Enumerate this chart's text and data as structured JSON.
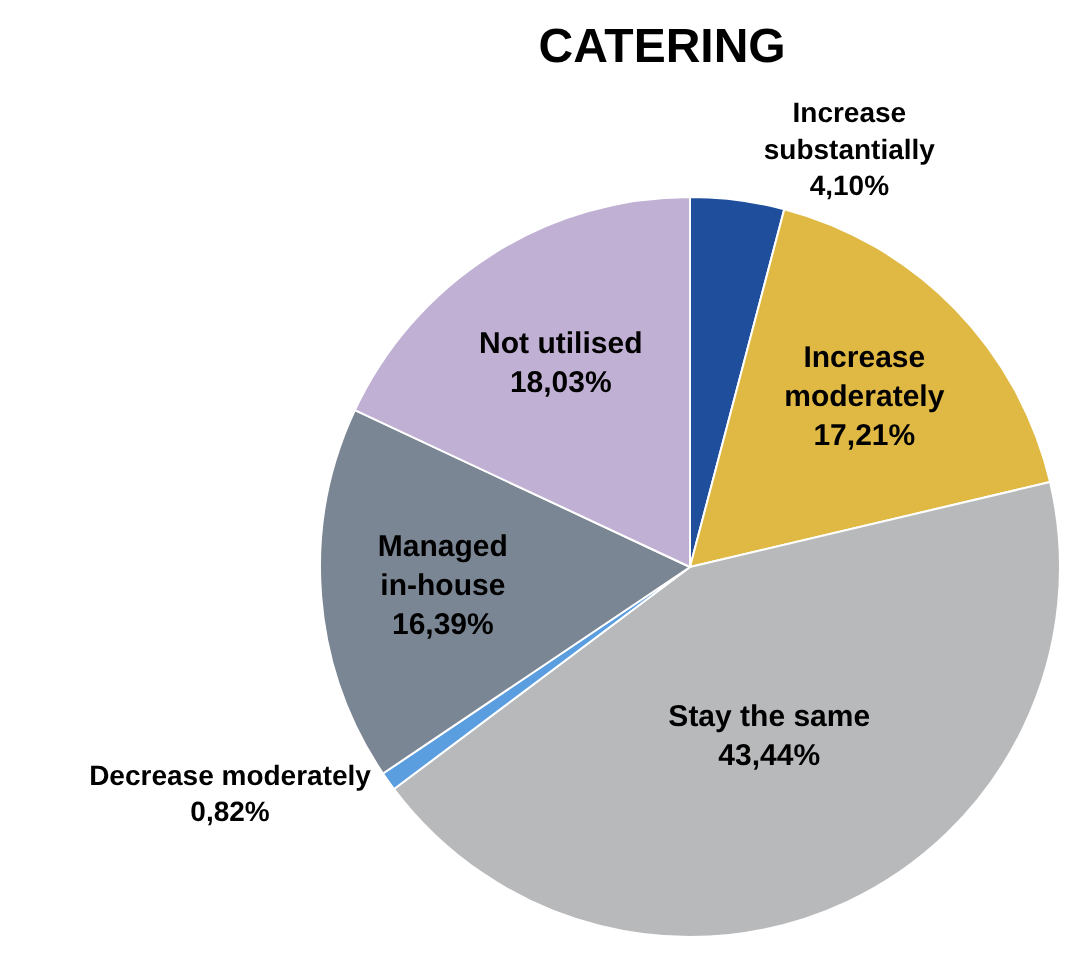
{
  "chart_data": {
    "type": "pie",
    "title": "CATERING",
    "categories": [
      "Increase substantially",
      "Increase moderately",
      "Stay the same",
      "Decrease moderately",
      "Managed in-house",
      "Not utilised"
    ],
    "values": [
      4.1,
      17.21,
      43.44,
      0.82,
      16.39,
      18.03
    ],
    "value_labels": [
      "4,10%",
      "17,21%",
      "43,44%",
      "0,82%",
      "16,39%",
      "18,03%"
    ],
    "colors": [
      "#1f4e9c",
      "#e0b944",
      "#b8b9bb",
      "#5b9ee0",
      "#7b8694",
      "#c0b0d4"
    ],
    "legend": false
  }
}
